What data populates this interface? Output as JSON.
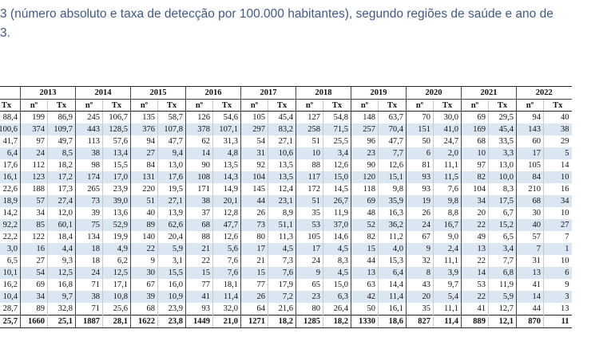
{
  "caption": {
    "line1": "3 (número absoluto e taxa de detecção por 100.000 habitantes), segundo regiões de saúde e ano de",
    "line2": "3."
  },
  "header": {
    "years": [
      "",
      "2013",
      "2014",
      "2015",
      "2016",
      "2017",
      "2018",
      "2019",
      "2020",
      "2021",
      "2022"
    ],
    "first_sub": "Tx",
    "sub_n": "nº",
    "sub_tx": "Tx"
  },
  "rows": [
    [
      "88,4",
      "199",
      "86,9",
      "245",
      "106,7",
      "135",
      "58,7",
      "126",
      "54,6",
      "105",
      "45,4",
      "127",
      "54,8",
      "148",
      "63,7",
      "70",
      "30,0",
      "69",
      "29,5",
      "94",
      "40"
    ],
    [
      "100,6",
      "374",
      "109,7",
      "443",
      "128,5",
      "376",
      "107,8",
      "378",
      "107,1",
      "297",
      "83,2",
      "258",
      "71,5",
      "257",
      "70,4",
      "151",
      "41,0",
      "169",
      "45,4",
      "143",
      "38"
    ],
    [
      "41,7",
      "97",
      "49,7",
      "113",
      "57,6",
      "94",
      "47,7",
      "62",
      "31,3",
      "54",
      "27,1",
      "51",
      "25,5",
      "96",
      "47,7",
      "50",
      "24,7",
      "68",
      "33,5",
      "60",
      "29"
    ],
    [
      "6,4",
      "24",
      "8,5",
      "38",
      "13,4",
      "27",
      "9,4",
      "14",
      "4,8",
      "31",
      "10,6",
      "10",
      "3,4",
      "23",
      "7,7",
      "6",
      "2,0",
      "10",
      "3,3",
      "17",
      "5"
    ],
    [
      "17,6",
      "112",
      "18,2",
      "98",
      "15,5",
      "84",
      "13,0",
      "90",
      "13,5",
      "92",
      "13,5",
      "88",
      "12,6",
      "90",
      "12,6",
      "81",
      "11,1",
      "97",
      "13,0",
      "105",
      "14"
    ],
    [
      "16,1",
      "123",
      "17,2",
      "174",
      "17,0",
      "131",
      "17,6",
      "108",
      "14,3",
      "104",
      "13,5",
      "117",
      "15,0",
      "120",
      "15,1",
      "93",
      "11,5",
      "82",
      "10,0",
      "84",
      "10"
    ],
    [
      "22,6",
      "188",
      "17,3",
      "265",
      "23,9",
      "220",
      "19,5",
      "171",
      "14,9",
      "145",
      "12,4",
      "172",
      "14,5",
      "118",
      "9,8",
      "93",
      "7,6",
      "104",
      "8,3",
      "210",
      "16"
    ],
    [
      "18,9",
      "57",
      "27,4",
      "73",
      "39,0",
      "51",
      "27,1",
      "38",
      "20,1",
      "44",
      "23,1",
      "51",
      "26,7",
      "69",
      "35,9",
      "19",
      "9,8",
      "34",
      "17,5",
      "68",
      "34"
    ],
    [
      "14,2",
      "34",
      "12,0",
      "39",
      "13,6",
      "40",
      "13,9",
      "37",
      "12,8",
      "26",
      "8,9",
      "35",
      "11,9",
      "48",
      "16,3",
      "26",
      "8,8",
      "20",
      "6,7",
      "30",
      "10"
    ],
    [
      "92,2",
      "85",
      "60,1",
      "75",
      "52,9",
      "89",
      "62,6",
      "68",
      "47,7",
      "73",
      "51,1",
      "53",
      "37,0",
      "52",
      "36,2",
      "24",
      "16,7",
      "22",
      "15,2",
      "40",
      "27"
    ],
    [
      "22,2",
      "122",
      "18,4",
      "134",
      "19,9",
      "140",
      "20,4",
      "88",
      "12,6",
      "80",
      "11,3",
      "105",
      "14,6",
      "82",
      "11,2",
      "67",
      "9,0",
      "49",
      "6,5",
      "57",
      "7"
    ],
    [
      "3,0",
      "16",
      "4,4",
      "18",
      "4,9",
      "22",
      "5,9",
      "21",
      "5,6",
      "17",
      "4,5",
      "17",
      "4,5",
      "15",
      "4,0",
      "9",
      "2,4",
      "13",
      "3,4",
      "7",
      "1"
    ],
    [
      "6,5",
      "27",
      "9,3",
      "18",
      "6,2",
      "9",
      "3,1",
      "22",
      "7,6",
      "21",
      "7,3",
      "24",
      "8,3",
      "44",
      "15,3",
      "32",
      "11,1",
      "22",
      "7,7",
      "31",
      "10"
    ],
    [
      "10,1",
      "54",
      "12,5",
      "24",
      "12,5",
      "30",
      "15,5",
      "15",
      "7,6",
      "15",
      "7,6",
      "9",
      "4,5",
      "13",
      "6,4",
      "8",
      "3,9",
      "14",
      "6,8",
      "13",
      "6"
    ],
    [
      "16,2",
      "69",
      "16,8",
      "71",
      "17,1",
      "67",
      "16,0",
      "77",
      "18,1",
      "77",
      "17,9",
      "65",
      "15,0",
      "63",
      "14,4",
      "43",
      "9,7",
      "53",
      "11,9",
      "41",
      "9"
    ],
    [
      "10,4",
      "34",
      "9,7",
      "38",
      "10,8",
      "39",
      "10,9",
      "41",
      "11,4",
      "26",
      "7,2",
      "23",
      "6,3",
      "42",
      "11,4",
      "20",
      "5,4",
      "22",
      "5,9",
      "14",
      "3"
    ],
    [
      "28,7",
      "89",
      "32,8",
      "71",
      "25,6",
      "68",
      "23,9",
      "93",
      "32,0",
      "64",
      "21,6",
      "80",
      "26,4",
      "50",
      "16,1",
      "35",
      "11,1",
      "41",
      "12,7",
      "44",
      "13"
    ]
  ],
  "total": [
    "25,7",
    "1660",
    "25,1",
    "1887",
    "28,1",
    "1622",
    "23,8",
    "1449",
    "21,0",
    "1271",
    "18,2",
    "1285",
    "18,2",
    "1330",
    "18,6",
    "827",
    "11,4",
    "889",
    "12,1",
    "870",
    "11"
  ]
}
